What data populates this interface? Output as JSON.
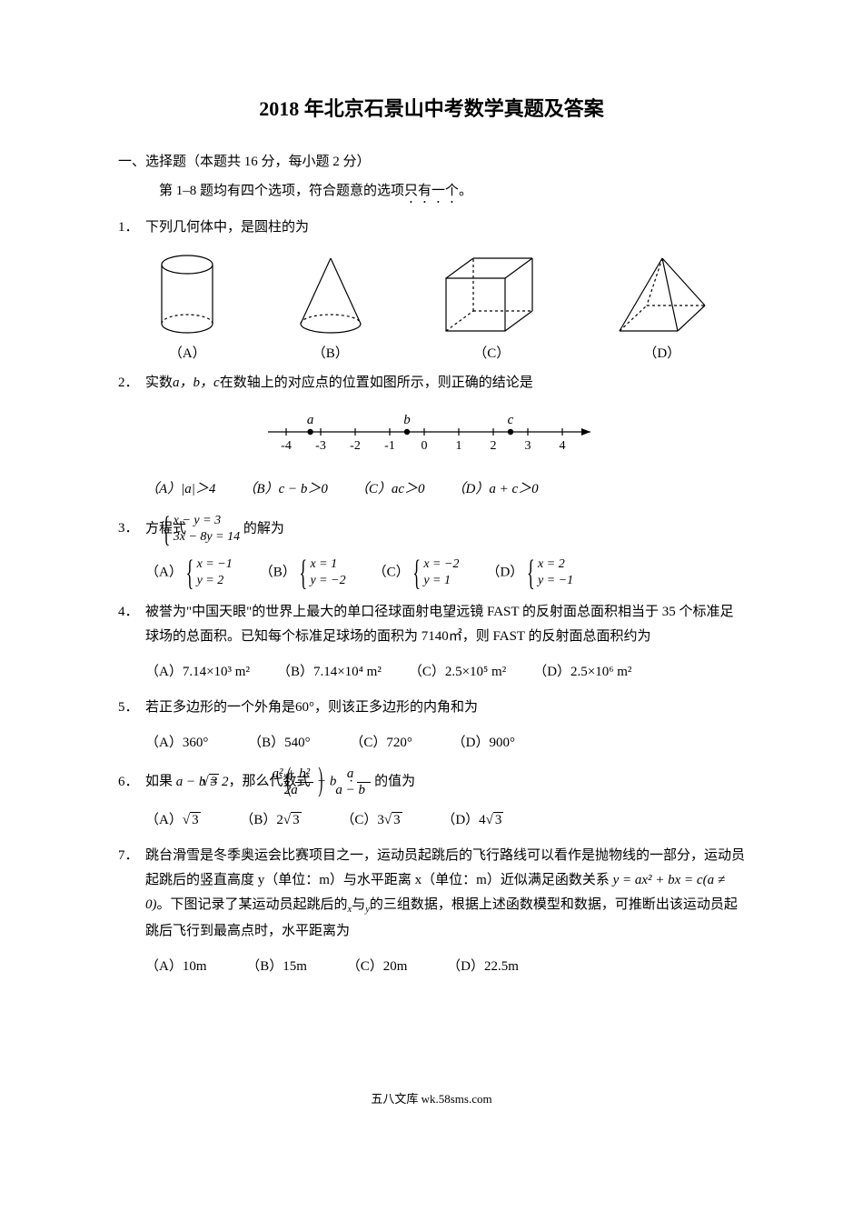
{
  "title": "2018 年北京石景山中考数学真题及答案",
  "section": {
    "header": "一、选择题（本题共 16 分，每小题 2 分）",
    "note_prefix": "第 1–8 题均有四个选项，符合题意的选项",
    "note_emphasis": "只有一个",
    "note_suffix": "。"
  },
  "q1": {
    "num": "1．",
    "text": "下列几何体中，是圆柱的为",
    "labels": [
      "（A）",
      "（B）",
      "（C）",
      "（D）"
    ]
  },
  "q2": {
    "num": "2．",
    "text": "实数",
    "vars": "a，b，c",
    "text2": "在数轴上的对应点的位置如图所示，则正确的结论是",
    "numberline": {
      "ticks": [
        "-4",
        "-3",
        "-2",
        "-1",
        "0",
        "1",
        "2",
        "3",
        "4"
      ],
      "points": [
        {
          "label": "a",
          "pos": -3.3
        },
        {
          "label": "b",
          "pos": -0.5
        },
        {
          "label": "c",
          "pos": 2.5
        }
      ]
    },
    "opts": {
      "A": "（A）|a|＞4",
      "B": "（B）c − b＞0",
      "C": "（C）ac＞0",
      "D": "（D）a + c＞0"
    }
  },
  "q3": {
    "num": "3．",
    "text": "方程式",
    "sys": {
      "l1": "x − y = 3",
      "l2": "3x − 8y = 14"
    },
    "text2": "的解为",
    "opts": {
      "A": {
        "label": "（A）",
        "l1": "x = −1",
        "l2": "y = 2"
      },
      "B": {
        "label": "（B）",
        "l1": "x = 1",
        "l2": "y = −2"
      },
      "C": {
        "label": "（C）",
        "l1": "x = −2",
        "l2": "y = 1"
      },
      "D": {
        "label": "（D）",
        "l1": "x = 2",
        "l2": "y = −1"
      }
    }
  },
  "q4": {
    "num": "4．",
    "text": "被誉为\"中国天眼\"的世界上最大的单口径球面射电望远镜 FAST 的反射面总面积相当于 35 个标准足球场的总面积。已知每个标准足球场的面积为 7140㎡，则 FAST 的反射面总面积约为",
    "opts": {
      "A": "（A）7.14×10³ m²",
      "B": "（B）7.14×10⁴ m²",
      "C": "（C）2.5×10⁵ m²",
      "D": "（D）2.5×10⁶ m²"
    }
  },
  "q5": {
    "num": "5．",
    "text": "若正多边形的一个外角是",
    "angle": "60°",
    "text2": "，则该正多边形的内角和为",
    "opts": {
      "A": "（A）360°",
      "B": "（B）540°",
      "C": "（C）720°",
      "D": "（D）900°"
    }
  },
  "q6": {
    "num": "6．",
    "text": "如果",
    "cond_lhs": "a − b = 2",
    "cond_sqrt": "3",
    "text2": "，那么代数式",
    "frac1_num": "a² + b²",
    "frac1_den": "2a",
    "minus_b": " − b",
    "dot": " · ",
    "frac2_num": "a",
    "frac2_den": "a − b",
    "text3": "的值为",
    "opts": {
      "A_label": "（A）",
      "A_val": "3",
      "B_label": "（B）",
      "B_pre": "2",
      "B_val": "3",
      "C_label": "（C）",
      "C_pre": "3",
      "C_val": "3",
      "D_label": "（D）",
      "D_pre": "4",
      "D_val": "3"
    }
  },
  "q7": {
    "num": "7．",
    "text": "跳台滑雪是冬季奥运会比赛项目之一，运动员起跳后的飞行路线可以看作是抛物线的一部分，运动员起跳后的竖直高度 y（单位：m）与水平距离 x（单位：m）近似满足函数关系",
    "formula": "y = ax² + bx = c(a ≠ 0)",
    "text2": "。下图记录了某运动员起跳后的",
    "xy1": "x",
    "and": "与",
    "xy2": "y",
    "text3": "的三组数据，根据上述函数模型和数据，可推断出该运动员起跳后飞行到最高点时，水平距离为",
    "opts": {
      "A": "（A）10m",
      "B": "（B）15m",
      "C": "（C）20m",
      "D": "（D）22.5m"
    }
  },
  "footer": "五八文库 wk.58sms.com",
  "colors": {
    "text": "#000000",
    "bg": "#ffffff",
    "stroke": "#000000"
  }
}
